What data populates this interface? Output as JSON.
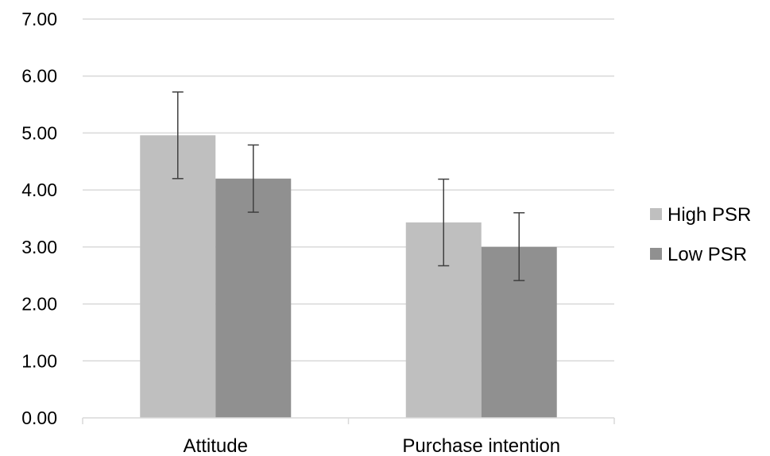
{
  "chart_data": {
    "type": "bar",
    "title": "",
    "xlabel": "",
    "ylabel": "",
    "ylim": [
      0,
      7
    ],
    "y_ticks": [
      "0.00",
      "1.00",
      "2.00",
      "3.00",
      "4.00",
      "5.00",
      "6.00",
      "7.00"
    ],
    "grid": true,
    "legend_position": "right",
    "categories": [
      "Attitude",
      "Purchase intention"
    ],
    "series": [
      {
        "name": "High PSR",
        "color": "#bfbfbf",
        "values": [
          4.96,
          3.43
        ],
        "error_low": [
          4.2,
          2.67
        ],
        "error_high": [
          5.72,
          4.19
        ]
      },
      {
        "name": "Low PSR",
        "color": "#909090",
        "values": [
          4.2,
          3.0
        ],
        "error_low": [
          3.61,
          2.41
        ],
        "error_high": [
          4.79,
          3.6
        ]
      }
    ]
  }
}
